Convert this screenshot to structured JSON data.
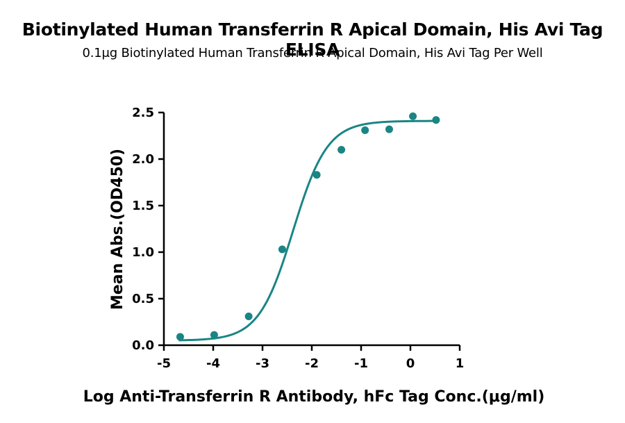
{
  "chart_data": {
    "type": "scatter",
    "title": "Biotinylated Human Transferrin R Apical Domain, His Avi Tag ELISA",
    "subtitle": "0.1μg Biotinylated Human Transferrin R Apical Domain, His Avi Tag Per Well",
    "xlabel": "Log Anti-Transferrin R Antibody, hFc Tag Conc.(μg/ml)",
    "ylabel": "Mean Abs.(OD450)",
    "xlim": [
      -5,
      1
    ],
    "ylim": [
      0,
      2.5
    ],
    "x_ticks": [
      "-5",
      "-4",
      "-3",
      "-2",
      "-1",
      "0",
      "1"
    ],
    "y_ticks": [
      "0.0",
      "0.5",
      "1.0",
      "1.5",
      "2.0",
      "2.5"
    ],
    "series": [
      {
        "x": [
          -4.67,
          -3.98,
          -3.28,
          -2.6,
          -1.9,
          -1.4,
          -0.92,
          -0.43,
          0.05,
          0.52
        ],
        "y": [
          0.09,
          0.11,
          0.31,
          1.03,
          1.83,
          2.1,
          2.31,
          2.32,
          2.46,
          2.42
        ],
        "color": "#1a8584"
      }
    ],
    "fit_curve": {
      "type": "4PL",
      "bottom": 0.05,
      "top": 2.41,
      "log_ec50": -2.38,
      "hill": 1.25,
      "color": "#1a8584"
    },
    "grid": false,
    "legend": "none"
  }
}
